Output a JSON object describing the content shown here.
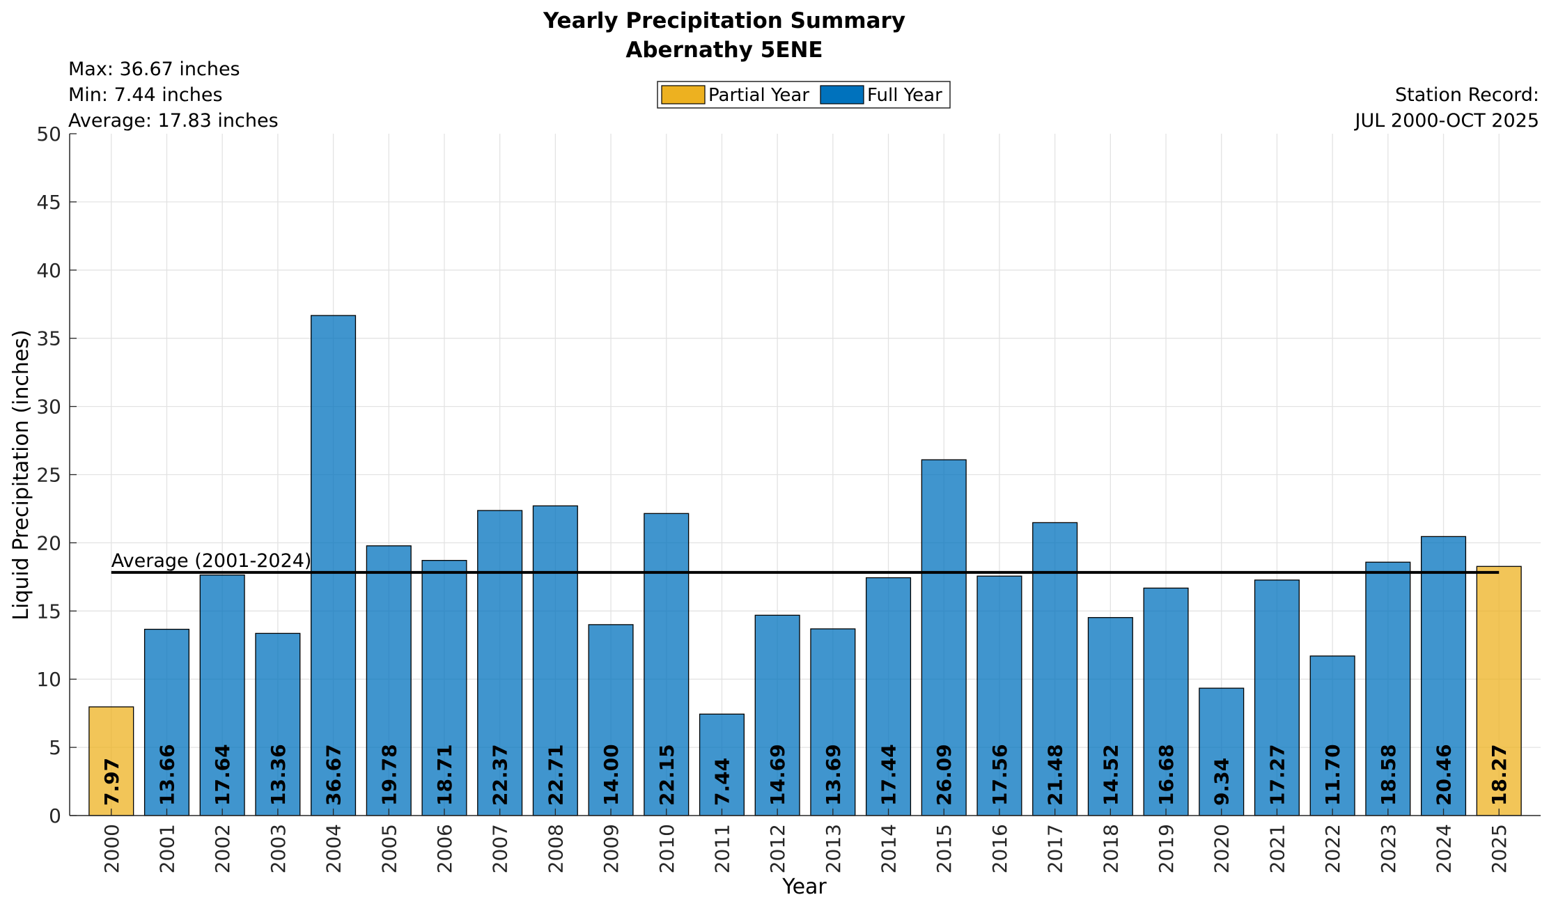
{
  "chart_data": {
    "type": "bar",
    "title": "Yearly Precipitation Summary",
    "subtitle": "Abernathy 5ENE",
    "stats": {
      "max": "Max: 36.67 inches",
      "min": "Min: 7.44 inches",
      "average": "Average: 17.83 inches"
    },
    "station_record": {
      "label": "Station Record:",
      "range": "JUL 2000-OCT 2025"
    },
    "legend": {
      "position": "top-center",
      "items": [
        {
          "name": "Partial Year",
          "color": "#EDB120"
        },
        {
          "name": "Full Year",
          "color": "#0072BD"
        }
      ]
    },
    "xlabel": "Year",
    "ylabel": "Liquid Precipitation (inches)",
    "ylim": [
      0,
      50
    ],
    "yticks": [
      0,
      5,
      10,
      15,
      20,
      25,
      30,
      35,
      40,
      45,
      50
    ],
    "grid": true,
    "colors": {
      "partial": "#EDB120",
      "full": "#0072BD"
    },
    "categories": [
      "2000",
      "2001",
      "2002",
      "2003",
      "2004",
      "2005",
      "2006",
      "2007",
      "2008",
      "2009",
      "2010",
      "2011",
      "2012",
      "2013",
      "2014",
      "2015",
      "2016",
      "2017",
      "2018",
      "2019",
      "2020",
      "2021",
      "2022",
      "2023",
      "2024",
      "2025"
    ],
    "values": [
      7.97,
      13.66,
      17.64,
      13.36,
      36.67,
      19.78,
      18.71,
      22.37,
      22.71,
      14.0,
      22.15,
      7.44,
      14.69,
      13.69,
      17.44,
      26.09,
      17.56,
      21.48,
      14.52,
      16.68,
      9.34,
      17.27,
      11.7,
      18.58,
      20.46,
      18.27
    ],
    "value_labels": [
      "7.97",
      "13.66",
      "17.64",
      "13.36",
      "36.67",
      "19.78",
      "18.71",
      "22.37",
      "22.71",
      "14.00",
      "22.15",
      "7.44",
      "14.69",
      "13.69",
      "17.44",
      "26.09",
      "17.56",
      "21.48",
      "14.52",
      "16.68",
      "9.34",
      "17.27",
      "11.70",
      "18.58",
      "20.46",
      "18.27"
    ],
    "partial": [
      true,
      false,
      false,
      false,
      false,
      false,
      false,
      false,
      false,
      false,
      false,
      false,
      false,
      false,
      false,
      false,
      false,
      false,
      false,
      false,
      false,
      false,
      false,
      false,
      false,
      true
    ],
    "average_line": {
      "label": "Average (2001-2024)",
      "value": 17.83,
      "from": "2000",
      "to": "2025"
    }
  }
}
